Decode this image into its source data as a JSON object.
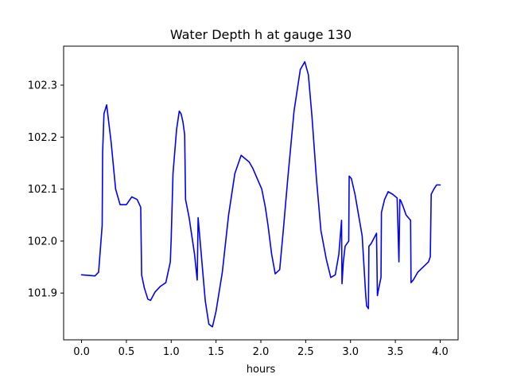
{
  "chart_data": {
    "type": "line",
    "title": "Water Depth h at gauge 130",
    "xlabel": "hours",
    "ylabel": "",
    "xlim": [
      -0.2,
      4.2
    ],
    "ylim": [
      101.81,
      102.375
    ],
    "xticks": [
      0.0,
      0.5,
      1.0,
      1.5,
      2.0,
      2.5,
      3.0,
      3.5,
      4.0
    ],
    "xtick_labels": [
      "0.0",
      "0.5",
      "1.0",
      "1.5",
      "2.0",
      "2.5",
      "3.0",
      "3.5",
      "4.0"
    ],
    "yticks": [
      101.9,
      102.0,
      102.1,
      102.2,
      102.3
    ],
    "ytick_labels": [
      "101.9",
      "102.0",
      "102.1",
      "102.2",
      "102.3"
    ],
    "grid": false,
    "legend": "none",
    "series": [
      {
        "color": "#0000ff",
        "x": [
          0.0,
          0.15,
          0.19,
          0.21,
          0.23,
          0.235,
          0.25,
          0.28,
          0.33,
          0.38,
          0.43,
          0.5,
          0.56,
          0.62,
          0.66,
          0.67,
          0.7,
          0.74,
          0.77,
          0.82,
          0.88,
          0.94,
          0.99,
          1.0,
          1.02,
          1.06,
          1.09,
          1.11,
          1.13,
          1.15,
          1.16,
          1.2,
          1.26,
          1.29,
          1.3,
          1.34,
          1.38,
          1.42,
          1.46,
          1.5,
          1.57,
          1.64,
          1.71,
          1.78,
          1.87,
          1.91,
          1.96,
          2.01,
          2.05,
          2.08,
          2.12,
          2.16,
          2.21,
          2.25,
          2.3,
          2.37,
          2.44,
          2.49,
          2.53,
          2.57,
          2.62,
          2.67,
          2.73,
          2.78,
          2.83,
          2.87,
          2.9,
          2.905,
          2.92,
          2.94,
          2.98,
          2.985,
          3.01,
          3.05,
          3.09,
          3.13,
          3.17,
          3.18,
          3.2,
          3.205,
          3.23,
          3.26,
          3.29,
          3.3,
          3.31,
          3.34,
          3.345,
          3.38,
          3.42,
          3.47,
          3.52,
          3.54,
          3.55,
          3.56,
          3.59,
          3.62,
          3.67,
          3.675,
          3.7,
          3.75,
          3.81,
          3.87,
          3.89,
          3.9,
          3.93,
          3.96,
          3.98,
          4.0
        ],
        "y": [
          101.935,
          101.933,
          101.94,
          101.985,
          102.03,
          102.17,
          102.245,
          102.262,
          102.19,
          102.1,
          102.07,
          102.07,
          102.085,
          102.08,
          102.065,
          101.935,
          101.91,
          101.888,
          101.886,
          101.902,
          101.913,
          101.92,
          101.96,
          102.005,
          102.13,
          102.215,
          102.25,
          102.245,
          102.23,
          102.205,
          102.08,
          102.045,
          101.975,
          101.925,
          102.045,
          101.965,
          101.885,
          101.84,
          101.835,
          101.865,
          101.94,
          102.05,
          102.13,
          102.165,
          102.152,
          102.14,
          102.12,
          102.1,
          102.065,
          102.03,
          101.975,
          101.937,
          101.945,
          102.02,
          102.12,
          102.25,
          102.33,
          102.345,
          102.32,
          102.24,
          102.12,
          102.02,
          101.965,
          101.93,
          101.935,
          101.975,
          102.04,
          101.918,
          101.96,
          101.99,
          102.0,
          102.125,
          102.12,
          102.09,
          102.05,
          102.01,
          101.895,
          101.875,
          101.87,
          101.99,
          101.995,
          102.005,
          102.015,
          101.895,
          101.905,
          101.93,
          102.055,
          102.08,
          102.095,
          102.09,
          102.083,
          101.96,
          102.08,
          102.078,
          102.065,
          102.05,
          102.04,
          101.92,
          101.925,
          101.94,
          101.95,
          101.96,
          101.97,
          102.09,
          102.1,
          102.108,
          102.108,
          102.108
        ]
      }
    ]
  }
}
